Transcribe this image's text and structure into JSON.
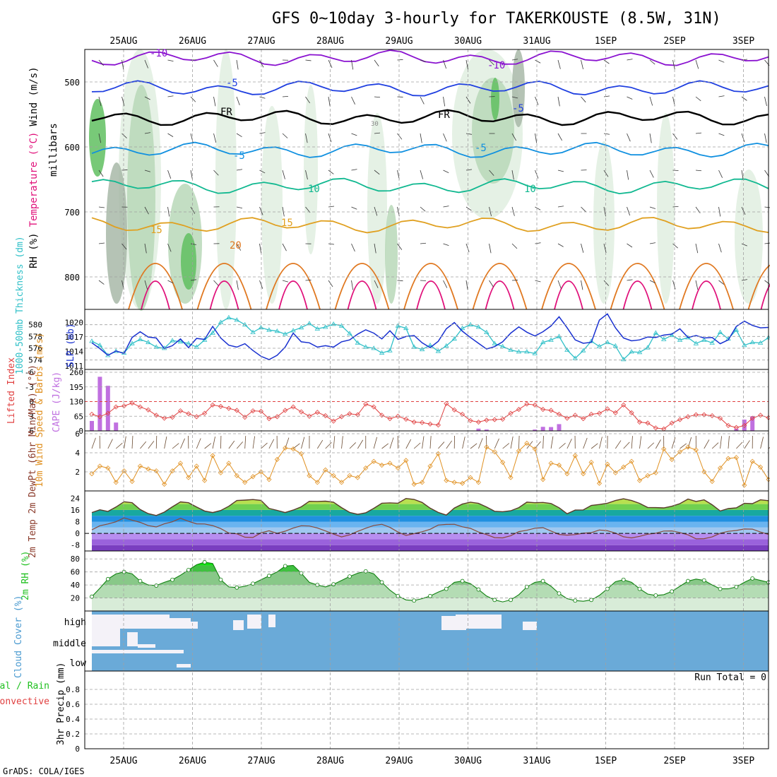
{
  "title": "GFS 0~10day 3-hourly for TAKERKOUSTE (8.5W, 31N)",
  "credit": "GrADS: COLA/IGES",
  "colors": {
    "frame": "#000000",
    "grid": "#a0a0a0",
    "rh_light": "#e0efe0",
    "rh_mid": "#b8d8b8",
    "rh_dark": "#60c060",
    "rh_darkest": "#30a030",
    "rh_gray": "#a8b8a8",
    "temp_m10": "#8a12d0",
    "temp_m5": "#1f3fe0",
    "temp_fr": "#000000",
    "temp_5": "#1090e0",
    "temp_10": "#10b890",
    "temp_15": "#e0a020",
    "temp_20": "#e07820",
    "temp_25": "#e0107a",
    "thickness": "#30c0c8",
    "slp": "#1830d0",
    "lifted": "#e04040",
    "cape": "#c070e0",
    "wind_speed": "#e09020",
    "wind_barb": "#6a4a30",
    "temp_max_fill": "#f0e060",
    "dewpt": "#8a4a3a",
    "rh2m": "#20c020",
    "cloud": "#6aaad8",
    "clear": "#f4f2f8"
  },
  "chart_data": {
    "days": [
      "25AUG",
      "26AUG",
      "27AUG",
      "28AUG",
      "29AUG",
      "30AUG",
      "31AUG",
      "1SEP",
      "2SEP",
      "3SEP"
    ],
    "panels": [
      {
        "id": "upper",
        "type": "contour",
        "ylabel_parts": [
          "Wind (m/s)",
          "Temperature (°C)",
          "RH (%)"
        ],
        "ylabel_right": "millibars",
        "yticks": [
          "500",
          "600",
          "700",
          "800"
        ],
        "ylim": [
          850,
          450
        ],
        "contour_labels": [
          "-10",
          "-5",
          "FR",
          "-5",
          "10",
          "15",
          "20",
          "30"
        ],
        "temp_levels": [
          {
            "label": "-10",
            "p": 463
          },
          {
            "label": "-5",
            "p": 510
          },
          {
            "label": "FR",
            "p": 555
          },
          {
            "label": "5",
            "p": 605
          },
          {
            "label": "10",
            "p": 660
          },
          {
            "label": "15",
            "p": 720
          }
        ]
      },
      {
        "id": "slp",
        "type": "line",
        "ylabel": "1000-500mb Thickness (dm)",
        "ylabel2": "SLP (mb)",
        "yticks_left": [
          "574",
          "576",
          "578",
          "580"
        ],
        "yticks_right": [
          "1011",
          "1014",
          "1017",
          "1020"
        ],
        "series": [
          {
            "name": "Thickness",
            "values": [
              577.2,
              576.5,
              574.8,
              575.5,
              575.2,
              576.8,
              577.5,
              577.0,
              576.2,
              576.0,
              577.3,
              577.1,
              576.8,
              576.2,
              577.4,
              578.6,
              580.4,
              581.2,
              580.8,
              580.0,
              578.7,
              579.5,
              579.1,
              578.9,
              578.4,
              579.0,
              579.5,
              580.2,
              579.3,
              579.6,
              580.1,
              579.8,
              578.5,
              576.9,
              576.2,
              576.0,
              575.2,
              575.6,
              579.8,
              579.4,
              576.2,
              575.8,
              576.5,
              575.5,
              576.4,
              577.6,
              579.4,
              580.0,
              579.6,
              578.7,
              576.8,
              576.3,
              575.7,
              575.4,
              575.4,
              575.1,
              577.0,
              577.4,
              578.0,
              575.7,
              574.3,
              575.6,
              577.2,
              576.3,
              577.0,
              576.4,
              574.1,
              575.4,
              575.3,
              576.1,
              578.6,
              577.5,
              578.2,
              577.4,
              577.8,
              576.8,
              577.4,
              576.9,
              578.7,
              577.6,
              579.1,
              576.5,
              577.0,
              576.9,
              577.8
            ]
          },
          {
            "name": "SLP",
            "values": [
              1015.8,
              1014.6,
              1013.2,
              1014.1,
              1013.6,
              1016.9,
              1018.1,
              1017.0,
              1016.8,
              1014.6,
              1015.2,
              1016.6,
              1014.8,
              1016.7,
              1016.5,
              1019.2,
              1016.8,
              1015.3,
              1014.9,
              1015.6,
              1014.2,
              1013.0,
              1012.3,
              1013.2,
              1014.9,
              1017.8,
              1016.0,
              1015.8,
              1014.9,
              1015.2,
              1014.9,
              1016.0,
              1016.4,
              1017.6,
              1018.5,
              1017.8,
              1016.6,
              1018.3,
              1016.5,
              1017.1,
              1017.3,
              1015.8,
              1014.8,
              1016.1,
              1018.7,
              1020.0,
              1018.2,
              1016.9,
              1015.7,
              1014.5,
              1015.0,
              1016.0,
              1017.8,
              1019.1,
              1018.0,
              1017.2,
              1018.1,
              1019.3,
              1021.2,
              1018.9,
              1016.4,
              1015.7,
              1015.9,
              1020.5,
              1021.8,
              1018.9,
              1016.8,
              1016.2,
              1016.4,
              1017.0,
              1016.9,
              1017.4,
              1017.6,
              1018.7,
              1016.9,
              1017.3,
              1016.8,
              1016.9,
              1015.6,
              1016.4,
              1019.2,
              1020.3,
              1019.4,
              1018.9,
              1019.0
            ]
          }
        ]
      },
      {
        "id": "cape",
        "type": "bar+line",
        "ylabel": "Lifted Index",
        "ylabel2": "CAPE (J/kg)",
        "yticks_left": [
          "-6",
          "-3",
          "0",
          "3",
          "6"
        ],
        "yticks_right": [
          "0",
          "65",
          "130",
          "195",
          "260"
        ],
        "series": [
          {
            "name": "Lifted Index",
            "values": [
              2.6,
              3.1,
              2.4,
              1.1,
              0.9,
              0.3,
              1.1,
              1.7,
              2.8,
              3.4,
              3.2,
              1.9,
              2.5,
              3.1,
              2.4,
              0.7,
              1.0,
              1.4,
              1.8,
              3.2,
              1.9,
              2.0,
              3.5,
              3.1,
              1.8,
              1.1,
              2.1,
              3.0,
              2.2,
              2.9,
              4.0,
              3.1,
              2.5,
              2.7,
              0.5,
              1.1,
              2.8,
              3.5,
              3.0,
              3.6,
              4.2,
              4.3,
              4.6,
              4.8,
              0.4,
              1.7,
              2.6,
              3.9,
              4.2,
              3.8,
              3.7,
              3.6,
              2.4,
              1.6,
              0.5,
              0.7,
              1.6,
              1.8,
              2.6,
              3.4,
              2.8,
              3.5,
              2.6,
              2.4,
              1.5,
              2.3,
              0.7,
              2.3,
              4.2,
              4.4,
              5.4,
              5.6,
              4.4,
              3.7,
              3.1,
              2.7,
              2.7,
              2.9,
              3.4,
              4.9,
              5.3,
              4.9,
              3.4,
              2.8,
              3.3
            ]
          },
          {
            "name": "CAPE",
            "values": [
              44,
              240,
              200,
              37,
              0,
              0,
              0,
              0,
              0,
              0,
              0,
              0,
              0,
              0,
              0,
              0,
              0,
              0,
              0,
              0,
              0,
              0,
              0,
              0,
              0,
              0,
              0,
              0,
              0,
              0,
              0,
              0,
              0,
              0,
              0,
              0,
              0,
              0,
              0,
              0,
              0,
              0,
              0,
              0,
              0,
              0,
              0,
              0,
              0,
              0,
              0,
              0,
              0,
              0,
              0,
              0,
              0,
              0,
              0,
              0,
              0,
              0,
              0,
              0,
              0,
              0,
              0,
              0,
              0,
              0,
              0,
              0,
              0,
              0,
              0,
              0,
              0,
              0,
              0,
              0,
              0,
              0,
              0,
              0,
              0
            ]
          }
        ]
      },
      {
        "id": "wind",
        "type": "line",
        "ylabel": "10m Wind Speed & Barbs (m/s)",
        "yticks": [
          "2",
          "4",
          "6"
        ],
        "ylim": [
          0,
          6
        ],
        "values": [
          1.8,
          2.6,
          2.4,
          0.9,
          2.1,
          1.0,
          2.6,
          2.3,
          2.1,
          0.7,
          2.1,
          2.9,
          1.4,
          2.6,
          1.1,
          3.7,
          1.9,
          2.9,
          1.6,
          0.9,
          1.5,
          2.0,
          1.2,
          3.3,
          4.5,
          4.4,
          3.9,
          1.6,
          0.9,
          2.2,
          1.6,
          0.9,
          1.6,
          1.4,
          2.4,
          3.1,
          2.7,
          2.9,
          2.4,
          3.2,
          0.7,
          0.9,
          2.6,
          3.9,
          1.1,
          0.9,
          0.8,
          1.4,
          0.9,
          4.6,
          4.1,
          3.0,
          1.4,
          4.2,
          5.0,
          4.4,
          1.2,
          2.9,
          2.7,
          1.8,
          3.7,
          1.8,
          3.0,
          0.8,
          2.8,
          1.9,
          2.5,
          3.1,
          1.1,
          1.6,
          1.9,
          4.4,
          3.3,
          4.1,
          4.6,
          4.3,
          2.0,
          1.0,
          2.4,
          3.4,
          3.5,
          0.6,
          3.1,
          2.5,
          1.2
        ]
      },
      {
        "id": "temp2m",
        "type": "area+line",
        "ylabel": "2m Temp 2m DewPt (6hr Min/Max) (°C)",
        "yticks": [
          "24",
          "16",
          "8",
          "0",
          "-8"
        ],
        "ylim": [
          -12,
          28
        ],
        "series": [
          {
            "name": "2m Temp",
            "values": [
              14.2,
              16.1,
              15.0,
              18.0,
              21.6,
              20.9,
              16.3,
              13.5,
              12.2,
              14.5,
              18.1,
              21.5,
              20.9,
              18.0,
              15.3,
              14.2,
              15.6,
              18.5,
              22.4,
              22.7,
              23.1,
              22.5,
              17.0,
              15.7,
              14.2,
              15.9,
              18.1,
              21.9,
              21.8,
              22.0,
              21.3,
              17.6,
              14.3,
              13.0,
              14.0,
              17.1,
              20.6,
              20.8,
              20.6,
              23.8,
              23.2,
              21.1,
              17.2,
              14.3,
              12.5,
              17.3,
              20.0,
              21.3,
              20.5,
              18.0,
              15.1,
              14.8,
              15.4,
              17.6,
              21.3,
              20.9,
              21.1,
              20.4,
              17.5,
              13.4,
              15.9,
              16.0,
              19.1,
              19.7,
              20.6,
              22.4,
              23.6,
              22.4,
              20.5,
              17.7,
              17.6,
              17.4,
              18.5,
              20.3,
              23.4,
              21.8,
              22.9,
              19.5,
              15.3,
              16.9,
              17.4,
              20.5,
              20.3,
              22.9,
              22.3
            ]
          },
          {
            "name": "2m DewPt",
            "values": [
              2.4,
              5.2,
              6.4,
              7.9,
              10.6,
              9.0,
              7.5,
              5.3,
              4.4,
              6.5,
              7.9,
              10.3,
              8.2,
              6.5,
              6.4,
              5.3,
              3.3,
              0.2,
              -0.3,
              -2.6,
              -2.8,
              0.4,
              1.8,
              0.0,
              1.5,
              3.6,
              5.2,
              5.0,
              3.7,
              1.7,
              -0.5,
              -2.4,
              -1.0,
              1.4,
              3.5,
              5.4,
              6.2,
              4.1,
              0.9,
              -1.4,
              -0.2,
              1.1,
              2.8,
              5.7,
              6.1,
              6.2,
              4.5,
              3.4,
              0.9,
              -0.8,
              -2.9,
              -3.1,
              -1.6,
              1.2,
              2.1,
              3.5,
              3.9,
              1.6,
              -0.7,
              -1.2,
              -0.8,
              0.1,
              0.5,
              2.3,
              1.8,
              0.2,
              -2.3,
              -3.1,
              -2.0,
              -0.6,
              0.1,
              1.6,
              1.7,
              0.6,
              -1.0,
              -3.7,
              -3.6,
              -2.4,
              0.1,
              1.4,
              2.0,
              3.0,
              2.9,
              0.9,
              -0.7
            ]
          }
        ]
      },
      {
        "id": "rh2m",
        "type": "area",
        "ylabel": "2m RH (%)",
        "yticks": [
          "20",
          "40",
          "60",
          "80"
        ],
        "ylim": [
          0,
          90
        ],
        "values": [
          22,
          35,
          49,
          57,
          60,
          57,
          46,
          40,
          39,
          44,
          48,
          55,
          63,
          71,
          75,
          73,
          48,
          37,
          36,
          38,
          42,
          48,
          54,
          60,
          69,
          70,
          58,
          44,
          40,
          37,
          41,
          47,
          53,
          58,
          61,
          57,
          44,
          32,
          23,
          17,
          16,
          19,
          23,
          29,
          34,
          44,
          46,
          42,
          33,
          23,
          17,
          14,
          17,
          25,
          37,
          44,
          46,
          38,
          27,
          19,
          16,
          15,
          17,
          24,
          34,
          45,
          48,
          44,
          34,
          26,
          24,
          25,
          30,
          38,
          46,
          49,
          47,
          40,
          34,
          34,
          37,
          44,
          50,
          47,
          44
        ]
      },
      {
        "id": "cloud",
        "type": "heatmap",
        "ylabel": "Cloud Cover (%)",
        "rows": [
          "high",
          "middle",
          "low"
        ]
      },
      {
        "id": "precip",
        "type": "bar",
        "ylabel": "3hr Precip (mm)",
        "legend": [
          "Total / Rain",
          "Convective"
        ],
        "yticks": [
          "0",
          "0.2",
          "0.4",
          "0.6",
          "0.8"
        ],
        "ylim": [
          0,
          1
        ],
        "annotation": "Run Total = 0",
        "values": []
      }
    ]
  }
}
